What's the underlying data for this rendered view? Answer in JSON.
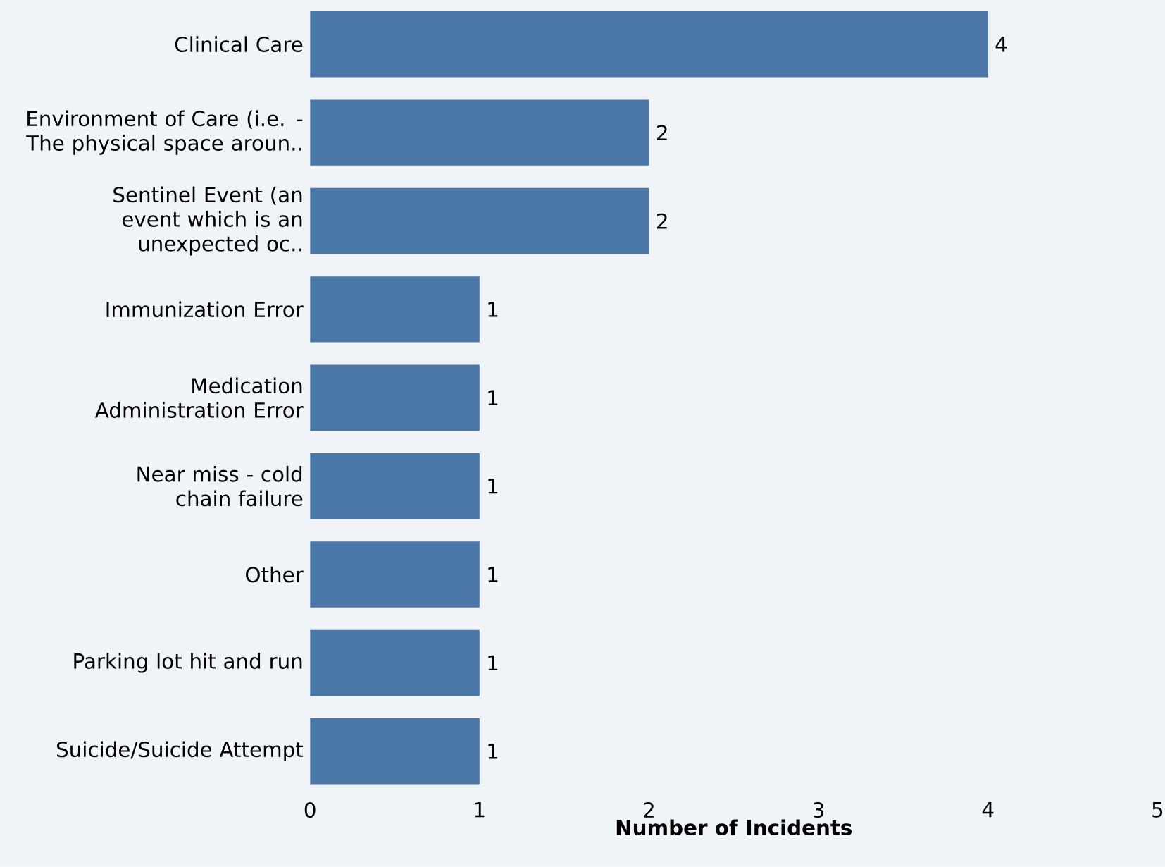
{
  "chart_data": {
    "type": "bar",
    "orientation": "horizontal",
    "xlabel": "Number of Incidents",
    "categories": [
      "Clinical Care",
      "Environment of Care (i.e. - The physical space aroun..",
      "Sentinel Event (an event which is an unexpected oc..",
      "Immunization Error",
      "Medication Administration Error",
      "Near miss - cold chain failure",
      "Other",
      "Parking lot hit and run",
      "Suicide/Suicide Attempt"
    ],
    "values": [
      4,
      2,
      2,
      1,
      1,
      1,
      1,
      1,
      1
    ],
    "color": "#4a76a8",
    "xlim": [
      0,
      5
    ],
    "xticks": [
      0,
      1,
      2,
      3,
      4,
      5
    ],
    "data_labels": true
  }
}
